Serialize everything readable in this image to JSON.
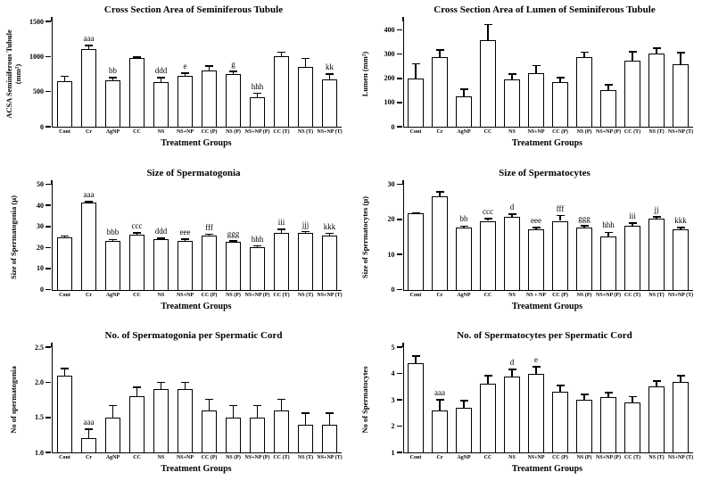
{
  "figure": {
    "background": "#ffffff",
    "ink_color": "#000000",
    "bar_fill": "#ffffff"
  },
  "chart_data": [
    {
      "type": "bar",
      "title": "Cross Section Area of Seminiferous Tubule",
      "ylabel": "ACSA Seminiferous Tubule\n(mm²)",
      "xlabel": "Treatment Groups",
      "categories": [
        "Cont",
        "Cr",
        "AgNP",
        "CC",
        "NS",
        "NS+NP",
        "CC (P)",
        "NS (P)",
        "NS+NP (P)",
        "CC (T)",
        "NS (T)",
        "NS+NP (T)"
      ],
      "values": [
        645,
        1100,
        665,
        975,
        640,
        730,
        800,
        755,
        420,
        1010,
        850,
        680
      ],
      "errors": [
        75,
        55,
        35,
        20,
        60,
        35,
        65,
        30,
        55,
        50,
        125,
        70
      ],
      "annotations": [
        "",
        "aaa",
        "bb",
        "",
        "ddd",
        "e",
        "",
        "g",
        "hhh",
        "",
        "",
        "kk"
      ],
      "ylim": [
        0,
        1500
      ],
      "yticks": [
        "0",
        "500",
        "1000",
        "1500"
      ],
      "grid": false,
      "legend": false
    },
    {
      "type": "bar",
      "title": "Cross Section Area of Lumen of Seminiferous Tubule",
      "ylabel": "Lumen (mm²)",
      "xlabel": "Treatment Groups",
      "categories": [
        "Cont",
        "Cr",
        "AgNP",
        "CC",
        "NS",
        "NS+NP",
        "CC (P)",
        "NS (P)",
        "NS+NP (P)",
        "CC (T)",
        "NS (T)",
        "NS+NP (T)"
      ],
      "values": [
        200,
        288,
        125,
        357,
        196,
        222,
        186,
        288,
        150,
        272,
        302,
        258
      ],
      "errors": [
        60,
        28,
        30,
        65,
        22,
        30,
        17,
        20,
        23,
        38,
        22,
        48
      ],
      "annotations": [
        "",
        "",
        "",
        "",
        "",
        "",
        "",
        "",
        "",
        "",
        "",
        ""
      ],
      "ylim": [
        0,
        435
      ],
      "yticks": [
        "0",
        "100",
        "200",
        "300",
        "400"
      ],
      "grid": false,
      "legend": false
    },
    {
      "type": "bar",
      "title": "Size of Spermatogonia",
      "ylabel": "Size of Spermatogonia (µ)",
      "xlabel": "Treatment Groups",
      "categories": [
        "Cont",
        "Cr",
        "AgNP",
        "CC",
        "NS",
        "NS+NP",
        "CC (P)",
        "NS (P)",
        "NS+NP (P)",
        "CC (T)",
        "NS (T)",
        "NS+NP (T)"
      ],
      "values": [
        24.9,
        41.2,
        23.1,
        26.2,
        24.1,
        23.1,
        25.6,
        22.6,
        20.3,
        27.1,
        26.9,
        25.8
      ],
      "errors": [
        0.5,
        0.6,
        0.7,
        0.7,
        0.4,
        0.9,
        0.7,
        0.5,
        0.5,
        1.5,
        0.6,
        0.9
      ],
      "annotations": [
        "",
        "aaa",
        "bbb",
        "ccc",
        "ddd",
        "eee",
        "fff",
        "ggg",
        "hhh",
        "iii",
        "jjj",
        "kkk"
      ],
      "ylim": [
        0,
        50
      ],
      "yticks": [
        "0",
        "10",
        "20",
        "30",
        "40",
        "50"
      ],
      "grid": false,
      "legend": false
    },
    {
      "type": "bar",
      "title": "Size of Spermatocytes",
      "ylabel": "Size of Spermatocytes (µ)",
      "xlabel": "Treatment Groups",
      "categories": [
        "Cont",
        "Cr",
        "AgNP",
        "CC",
        "NS",
        "NS + NP",
        "CC (P)",
        "NS (P)",
        "NS+NP (P)",
        "CC (T)",
        "NS (T)",
        "NS+NP (T)"
      ],
      "values": [
        21.7,
        26.5,
        17.6,
        19.6,
        20.7,
        17.1,
        19.6,
        17.7,
        15.1,
        18.1,
        20.2,
        17.3
      ],
      "errors": [
        0.2,
        1.3,
        0.5,
        0.6,
        0.8,
        0.6,
        1.5,
        0.5,
        1.2,
        0.8,
        0.5,
        0.4
      ],
      "annotations": [
        "",
        "",
        "bb",
        "ccc",
        "d",
        "eee",
        "fff",
        "ggg",
        "hhh",
        "iii",
        "jj",
        "kkk"
      ],
      "ylim": [
        0,
        30
      ],
      "yticks": [
        "0",
        "10",
        "20",
        "30"
      ],
      "grid": false,
      "legend": false
    },
    {
      "type": "bar",
      "title": "No. of Spermatogonia per Spermatic Cord",
      "ylabel": "No of spermatogonia",
      "xlabel": "Treatment Groups",
      "categories": [
        "Cont",
        "Cr",
        "AgNP",
        "CC",
        "NS",
        "NS+NP",
        "CC (P)",
        "NS (P)",
        "NS+NP (P)",
        "CC (T)",
        "NS (T)",
        "NS+NP (T)"
      ],
      "values": [
        2.1,
        1.2,
        1.5,
        1.8,
        1.9,
        1.9,
        1.6,
        1.5,
        1.5,
        1.6,
        1.4,
        1.4
      ],
      "errors": [
        0.1,
        0.13,
        0.17,
        0.13,
        0.1,
        0.1,
        0.16,
        0.17,
        0.17,
        0.16,
        0.16,
        0.16
      ],
      "annotations": [
        "",
        "aaa",
        "",
        "",
        "",
        "",
        "",
        "",
        "",
        "",
        "",
        ""
      ],
      "ylim": [
        1.0,
        2.5
      ],
      "yticks": [
        "1.0",
        "1.5",
        "2.0",
        "2.5"
      ],
      "grid": false,
      "legend": false
    },
    {
      "type": "bar",
      "title": "No. of Spermatocytes per Spermatic Cord",
      "ylabel": "No of Spermatocytes",
      "xlabel": "Treatment Groups",
      "categories": [
        "Cont",
        "Cr",
        "AgNP",
        "CC",
        "NS",
        "NS+NP",
        "CC (P)",
        "NS (P)",
        "NS+NP (P)",
        "CC (T)",
        "NS (T)",
        "NS+NP (T)"
      ],
      "values": [
        4.4,
        2.6,
        2.7,
        3.6,
        3.9,
        4.0,
        3.3,
        3.0,
        3.1,
        2.9,
        3.5,
        3.7
      ],
      "errors": [
        0.27,
        0.4,
        0.27,
        0.33,
        0.25,
        0.27,
        0.25,
        0.2,
        0.18,
        0.22,
        0.22,
        0.22
      ],
      "annotations": [
        "",
        "aaa",
        "",
        "",
        "d",
        "e",
        "",
        "",
        "",
        "",
        "",
        ""
      ],
      "ylim": [
        1,
        5
      ],
      "yticks": [
        "1",
        "2",
        "3",
        "4",
        "5"
      ],
      "grid": false,
      "legend": false
    }
  ]
}
